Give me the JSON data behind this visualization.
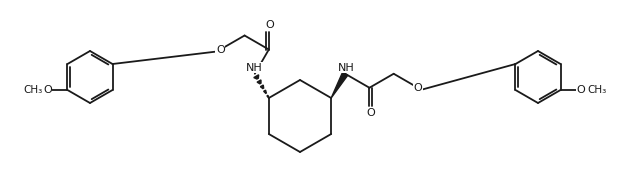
{
  "bg_color": "#ffffff",
  "lc": "#1a1a1a",
  "lw": 1.3,
  "blw": 2.8,
  "fs": 8.0,
  "figsize": [
    6.3,
    1.92
  ],
  "dpi": 100,
  "xlim": [
    0,
    630
  ],
  "ylim": [
    0,
    192
  ],
  "ring_r": 26,
  "cyc_r": 36
}
